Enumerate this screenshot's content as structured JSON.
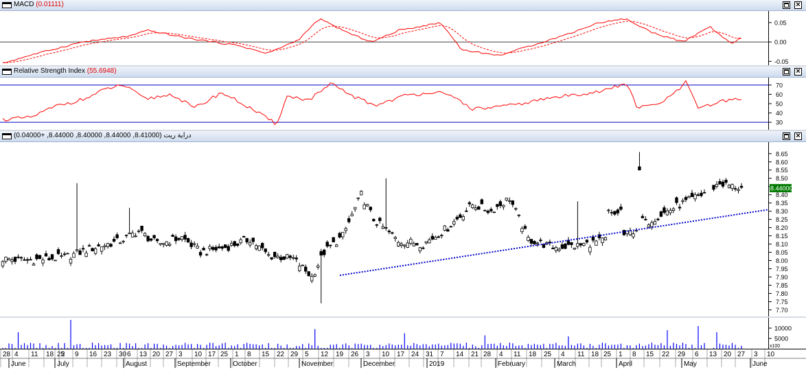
{
  "colors": {
    "macd": "#ff0000",
    "signal": "#ff0000",
    "rsi": "#ff0000",
    "rsi_bands": "#0000c0",
    "candle_up": "#ffffff",
    "candle_down": "#000000",
    "volume": "#0000ff",
    "trendline": "#0000cc",
    "price_tag_bg": "#007a00",
    "price_tag_fg": "#ffffff"
  },
  "panes": {
    "macd": {
      "name": "MACD",
      "value": "(0.01111)",
      "axis_ticks": [
        "0.05",
        "0.00",
        "-0.05"
      ]
    },
    "rsi": {
      "name": "Relative Strength Index",
      "value": "(55.6948)",
      "axis_ticks": [
        "70",
        "60",
        "50",
        "40",
        "30"
      ]
    },
    "price": {
      "name": "دراية ريت",
      "value": "(8.41000, 8.44000, 8.40000, 8.44000, +0.04000)",
      "axis_ticks": [
        "8.65",
        "8.60",
        "8.55",
        "8.50",
        "8.45",
        "8.40",
        "8.35",
        "8.30",
        "8.25",
        "8.20",
        "8.15",
        "8.10",
        "8.05",
        "8.00",
        "7.95",
        "7.90",
        "7.85",
        "7.80",
        "7.75",
        "7.70"
      ],
      "last_price": "8.44000"
    },
    "volume": {
      "axis_ticks": [
        "10000",
        "5000"
      ],
      "multiplier": "x100"
    }
  },
  "buttons": {
    "max_icon": "maximize-icon",
    "close_icon": "close-icon",
    "close_label": "×"
  },
  "x_axis": {
    "days": [
      "28",
      "4",
      "11",
      "18",
      "25",
      "2",
      "9",
      "16",
      "23",
      "30",
      "6",
      "13",
      "20",
      "27",
      "3",
      "10",
      "17",
      "25",
      "1",
      "8",
      "15",
      "22",
      "29",
      "5",
      "12",
      "19",
      "26",
      "3",
      "10",
      "17",
      "24",
      "31",
      "7",
      "14",
      "21",
      "28",
      "4",
      "11",
      "18",
      "25",
      "4",
      "11",
      "18",
      "25",
      "1",
      "8",
      "15",
      "22",
      "29",
      "6",
      "13",
      "20",
      "27",
      "3",
      "10"
    ],
    "months": [
      "June",
      "July",
      "August",
      "September",
      "October",
      "November",
      "December",
      "2019",
      "February",
      "March",
      "April",
      "May",
      "June"
    ]
  },
  "chart_data": [
    {
      "type": "line",
      "title": "MACD",
      "series": [
        {
          "name": "MACD",
          "values": []
        }
      ],
      "ylim": [
        -0.06,
        0.08
      ],
      "last_value": 0.01111
    },
    {
      "type": "line",
      "title": "Relative Strength Index",
      "series": [
        {
          "name": "RSI",
          "values": []
        }
      ],
      "ylim": [
        22,
        78
      ],
      "bands": [
        30,
        70
      ],
      "last_value": 55.6948
    },
    {
      "type": "candlestick",
      "title": "دراية ريت",
      "ylim": [
        7.66,
        8.72
      ],
      "ohlc_last": [
        8.41,
        8.44,
        8.4,
        8.44
      ],
      "change": 0.04,
      "trendline": {
        "from": 7.91,
        "to": 8.31
      }
    },
    {
      "type": "bar",
      "title": "Volume",
      "ylim": [
        0,
        15000
      ]
    }
  ]
}
